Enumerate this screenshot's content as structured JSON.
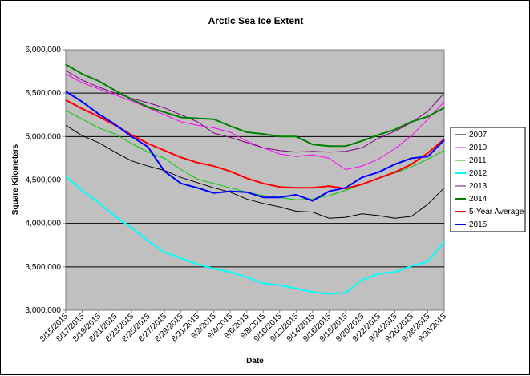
{
  "chart_data": {
    "type": "line",
    "title": "Arctic Sea Ice Extent",
    "xlabel": "Date",
    "ylabel": "Square Kilometers",
    "ylim": [
      3000000,
      6000000
    ],
    "y_ticks": [
      3000000,
      3500000,
      4000000,
      4500000,
      5000000,
      5500000,
      6000000
    ],
    "y_tick_labels": [
      "3,000,000",
      "3,500,000",
      "4,000,000",
      "4,500,000",
      "5,000,000",
      "5,500,000",
      "6,000,000"
    ],
    "grid": "horizontal",
    "legend_position": "right",
    "plot_background": "#c0c0c0",
    "x": [
      "8/15/2015",
      "8/17/2015",
      "8/19/2015",
      "8/21/2015",
      "8/23/2015",
      "8/25/2015",
      "8/27/2015",
      "8/29/2015",
      "8/31/2015",
      "9/2/2015",
      "9/4/2015",
      "9/6/2015",
      "9/8/2015",
      "9/10/2015",
      "9/12/2015",
      "9/14/2015",
      "9/16/2015",
      "9/18/2015",
      "9/20/2015",
      "9/22/2015",
      "9/24/2015",
      "9/26/2015",
      "9/28/2015",
      "9/30/2015"
    ],
    "series": [
      {
        "name": "2007",
        "color": "#000000",
        "width": 1,
        "values": [
          5130000,
          5010000,
          4930000,
          4820000,
          4720000,
          4660000,
          4610000,
          4530000,
          4470000,
          4410000,
          4360000,
          4280000,
          4230000,
          4190000,
          4140000,
          4130000,
          4060000,
          4070000,
          4110000,
          4090000,
          4060000,
          4080000,
          4220000,
          4410000
        ]
      },
      {
        "name": "2010",
        "color": "#ff00ff",
        "width": 1,
        "values": [
          5720000,
          5620000,
          5550000,
          5480000,
          5410000,
          5330000,
          5250000,
          5170000,
          5130000,
          5100000,
          5050000,
          4950000,
          4870000,
          4800000,
          4770000,
          4790000,
          4750000,
          4620000,
          4660000,
          4740000,
          4860000,
          5010000,
          5200000,
          5400000
        ]
      },
      {
        "name": "2011",
        "color": "#00cc00",
        "width": 1,
        "values": [
          5300000,
          5200000,
          5100000,
          5030000,
          4920000,
          4820000,
          4750000,
          4620000,
          4510000,
          4460000,
          4410000,
          4360000,
          4320000,
          4300000,
          4270000,
          4280000,
          4320000,
          4380000,
          4450000,
          4520000,
          4580000,
          4650000,
          4740000,
          4840000
        ]
      },
      {
        "name": "2012",
        "color": "#00ffff",
        "width": 2,
        "values": [
          4540000,
          4380000,
          4240000,
          4080000,
          3950000,
          3800000,
          3670000,
          3600000,
          3530000,
          3480000,
          3440000,
          3380000,
          3310000,
          3290000,
          3250000,
          3210000,
          3190000,
          3200000,
          3350000,
          3420000,
          3440000,
          3510000,
          3560000,
          3790000
        ]
      },
      {
        "name": "2013",
        "color": "#800080",
        "width": 1,
        "values": [
          5760000,
          5650000,
          5570000,
          5500000,
          5440000,
          5390000,
          5330000,
          5250000,
          5170000,
          5040000,
          4990000,
          4930000,
          4870000,
          4840000,
          4820000,
          4830000,
          4820000,
          4830000,
          4870000,
          4980000,
          5060000,
          5160000,
          5290000,
          5500000
        ]
      },
      {
        "name": "2014",
        "color": "#008000",
        "width": 2,
        "values": [
          5830000,
          5720000,
          5640000,
          5530000,
          5430000,
          5340000,
          5280000,
          5220000,
          5210000,
          5200000,
          5120000,
          5050000,
          5030000,
          5000000,
          5000000,
          4910000,
          4890000,
          4890000,
          4950000,
          5020000,
          5080000,
          5170000,
          5230000,
          5330000
        ]
      },
      {
        "name": "5-Year Average",
        "color": "#ff0000",
        "width": 2,
        "values": [
          5420000,
          5320000,
          5230000,
          5130000,
          5020000,
          4920000,
          4840000,
          4760000,
          4700000,
          4660000,
          4600000,
          4520000,
          4460000,
          4420000,
          4410000,
          4410000,
          4430000,
          4400000,
          4450000,
          4520000,
          4590000,
          4680000,
          4810000,
          4970000
        ]
      },
      {
        "name": "2015",
        "color": "#0000ff",
        "width": 2,
        "values": [
          5520000,
          5400000,
          5260000,
          5140000,
          5000000,
          4880000,
          4600000,
          4460000,
          4410000,
          4350000,
          4370000,
          4360000,
          4300000,
          4300000,
          4330000,
          4260000,
          4370000,
          4410000,
          4530000,
          4590000,
          4680000,
          4750000,
          4770000,
          4960000
        ]
      }
    ]
  }
}
